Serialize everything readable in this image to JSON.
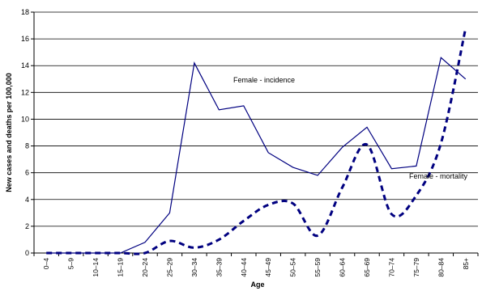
{
  "chart_data": {
    "type": "line",
    "xlabel": "Age",
    "ylabel": "New cases and deaths per 100,000",
    "ylim": [
      0,
      18
    ],
    "y_ticks": [
      0,
      2,
      4,
      6,
      8,
      10,
      12,
      14,
      16,
      18
    ],
    "grid": true,
    "categories": [
      "0–4",
      "5–9",
      "10–14",
      "15–19",
      "20–24",
      "25–29",
      "30–34",
      "35–39",
      "40–44",
      "45–49",
      "50–54",
      "55–59",
      "60–64",
      "65–69",
      "70–74",
      "75–79",
      "80–84",
      "85+"
    ],
    "series": [
      {
        "name": "Female - incidence",
        "style": "solid",
        "color": "#000080",
        "values": [
          0,
          0,
          0,
          0,
          0.8,
          3.0,
          14.2,
          10.7,
          11.0,
          7.5,
          6.4,
          5.8,
          7.9,
          9.4,
          6.3,
          6.5,
          14.6,
          13.0
        ]
      },
      {
        "name": "Female - mortality",
        "style": "dashed",
        "color": "#000080",
        "values": [
          0,
          0,
          0,
          0,
          0,
          0.9,
          0.4,
          1.0,
          2.4,
          3.6,
          3.7,
          1.3,
          4.9,
          8.1,
          2.9,
          4.3,
          8.2,
          16.8
        ]
      }
    ]
  }
}
